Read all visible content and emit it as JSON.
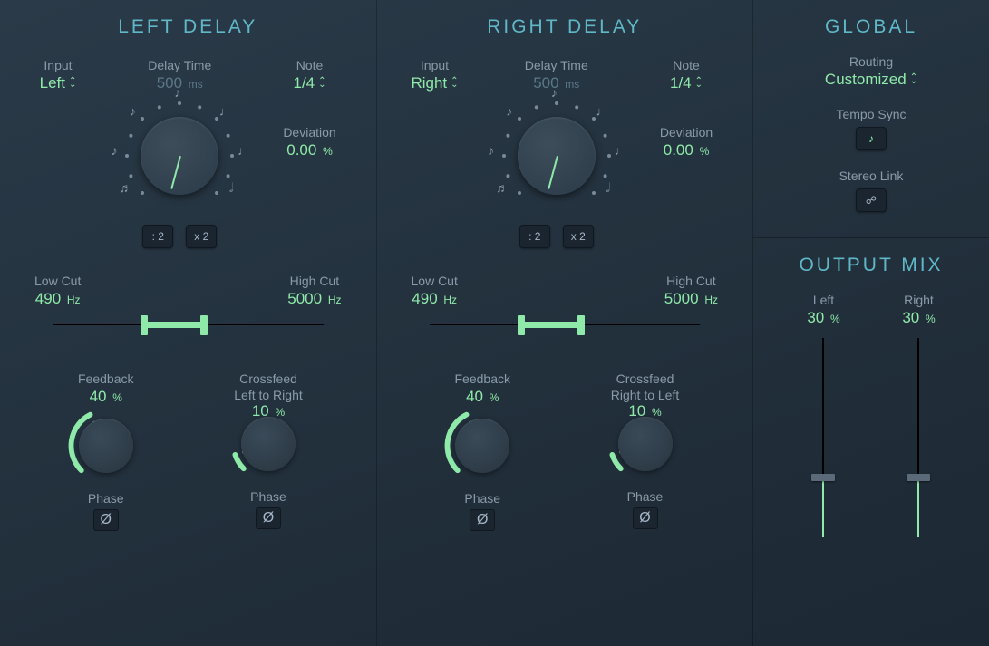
{
  "colors": {
    "accent": "#8fe9a8",
    "title": "#5fb8c8",
    "label": "#8a9aa8",
    "bg_start": "#2a3a48",
    "bg_end": "#1c2833"
  },
  "left_delay": {
    "title": "LEFT DELAY",
    "input": {
      "label": "Input",
      "value": "Left"
    },
    "delay_time": {
      "label": "Delay Time",
      "value": "500",
      "unit": "ms",
      "knob_angle_deg": 15
    },
    "note": {
      "label": "Note",
      "value": "1/4"
    },
    "deviation": {
      "label": "Deviation",
      "value": "0.00",
      "unit": "%"
    },
    "div2_label": ": 2",
    "mul2_label": "x 2",
    "low_cut": {
      "label": "Low Cut",
      "value": "490",
      "unit": "Hz"
    },
    "high_cut": {
      "label": "High Cut",
      "value": "5000",
      "unit": "Hz"
    },
    "filter_range": {
      "low_pct": 34,
      "high_pct": 56
    },
    "feedback": {
      "label": "Feedback",
      "value": "40",
      "unit": "%",
      "arc_start_deg": 225,
      "arc_end_deg": 333,
      "ptr_deg": 333
    },
    "crossfeed": {
      "label_line1": "Crossfeed",
      "label_line2": "Left to Right",
      "value": "10",
      "unit": "%",
      "arc_start_deg": 225,
      "arc_end_deg": 252,
      "ptr_deg": 252
    },
    "phase_label": "Phase"
  },
  "right_delay": {
    "title": "RIGHT DELAY",
    "input": {
      "label": "Input",
      "value": "Right"
    },
    "delay_time": {
      "label": "Delay Time",
      "value": "500",
      "unit": "ms",
      "knob_angle_deg": 15
    },
    "note": {
      "label": "Note",
      "value": "1/4"
    },
    "deviation": {
      "label": "Deviation",
      "value": "0.00",
      "unit": "%"
    },
    "div2_label": ": 2",
    "mul2_label": "x 2",
    "low_cut": {
      "label": "Low Cut",
      "value": "490",
      "unit": "Hz"
    },
    "high_cut": {
      "label": "High Cut",
      "value": "5000",
      "unit": "Hz"
    },
    "filter_range": {
      "low_pct": 34,
      "high_pct": 56
    },
    "feedback": {
      "label": "Feedback",
      "value": "40",
      "unit": "%",
      "arc_start_deg": 225,
      "arc_end_deg": 333,
      "ptr_deg": 333
    },
    "crossfeed": {
      "label_line1": "Crossfeed",
      "label_line2": "Right to Left",
      "value": "10",
      "unit": "%",
      "arc_start_deg": 225,
      "arc_end_deg": 252,
      "ptr_deg": 252
    },
    "phase_label": "Phase"
  },
  "global": {
    "title": "GLOBAL",
    "routing": {
      "label": "Routing",
      "value": "Customized"
    },
    "tempo_sync": {
      "label": "Tempo Sync",
      "active": true
    },
    "stereo_link": {
      "label": "Stereo Link",
      "active": false
    }
  },
  "output_mix": {
    "title": "OUTPUT MIX",
    "left": {
      "label": "Left",
      "value": "30",
      "unit": "%",
      "fader_pct": 30
    },
    "right": {
      "label": "Right",
      "value": "30",
      "unit": "%",
      "fader_pct": 30
    }
  }
}
